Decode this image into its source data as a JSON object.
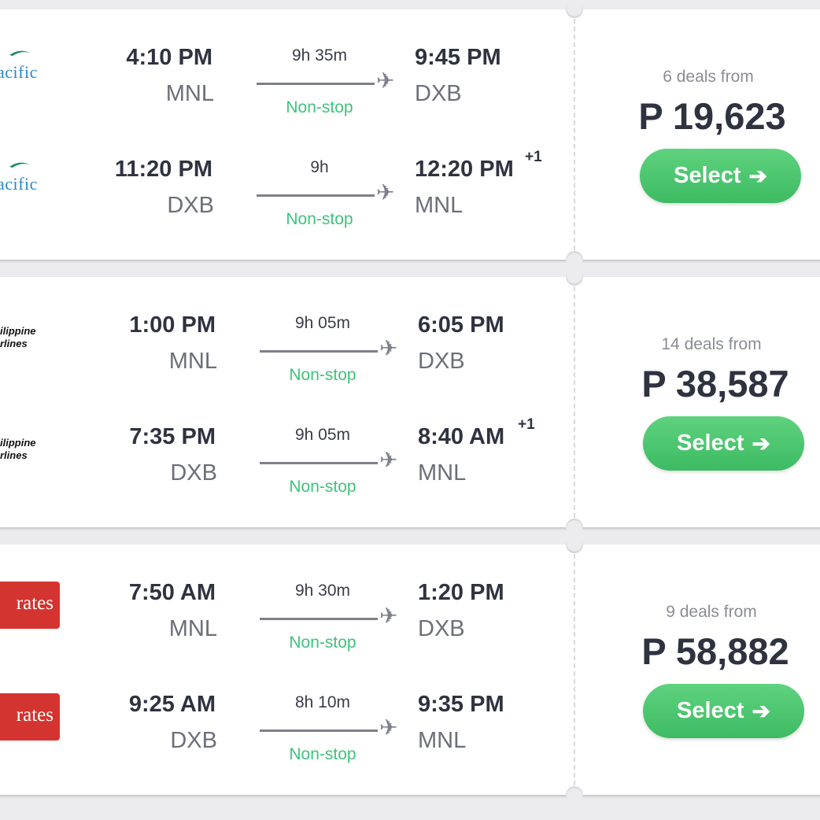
{
  "results": [
    {
      "deals_text": "6 deals from",
      "price": "P 19,623",
      "select_label": "Select",
      "legs": [
        {
          "airline_logo_text": "acific",
          "dep_time": "4:10 PM",
          "dep_code": "MNL",
          "duration": "9h 35m",
          "stops": "Non-stop",
          "arr_time": "9:45 PM",
          "arr_code": "DXB",
          "day_offset": ""
        },
        {
          "airline_logo_text": "acific",
          "dep_time": "11:20 PM",
          "dep_code": "DXB",
          "duration": "9h",
          "stops": "Non-stop",
          "arr_time": "12:20 PM",
          "arr_code": "MNL",
          "day_offset": "+1"
        }
      ]
    },
    {
      "deals_text": "14 deals from",
      "price": "P 38,587",
      "select_label": "Select",
      "legs": [
        {
          "airline_logo_text": [
            "ilippine",
            "rlines"
          ],
          "dep_time": "1:00 PM",
          "dep_code": "MNL",
          "duration": "9h 05m",
          "stops": "Non-stop",
          "arr_time": "6:05 PM",
          "arr_code": "DXB",
          "day_offset": ""
        },
        {
          "airline_logo_text": [
            "ilippine",
            "rlines"
          ],
          "dep_time": "7:35 PM",
          "dep_code": "DXB",
          "duration": "9h 05m",
          "stops": "Non-stop",
          "arr_time": "8:40 AM",
          "arr_code": "MNL",
          "day_offset": "+1"
        }
      ]
    },
    {
      "deals_text": "9 deals from",
      "price": "P 58,882",
      "select_label": "Select",
      "legs": [
        {
          "airline_logo_text": "rates",
          "dep_time": "7:50 AM",
          "dep_code": "MNL",
          "duration": "9h 30m",
          "stops": "Non-stop",
          "arr_time": "1:20 PM",
          "arr_code": "DXB",
          "day_offset": ""
        },
        {
          "airline_logo_text": "rates",
          "dep_time": "9:25 AM",
          "dep_code": "DXB",
          "duration": "8h 10m",
          "stops": "Non-stop",
          "arr_time": "9:35 PM",
          "arr_code": "MNL",
          "day_offset": ""
        }
      ]
    }
  ],
  "icons": {
    "plane": "airplane-icon",
    "arrow": "arrow-right-icon"
  },
  "colors": {
    "accent_green": "#3dbb63",
    "nonstop_green": "#3fc37a",
    "text_dark": "#2f3340"
  }
}
